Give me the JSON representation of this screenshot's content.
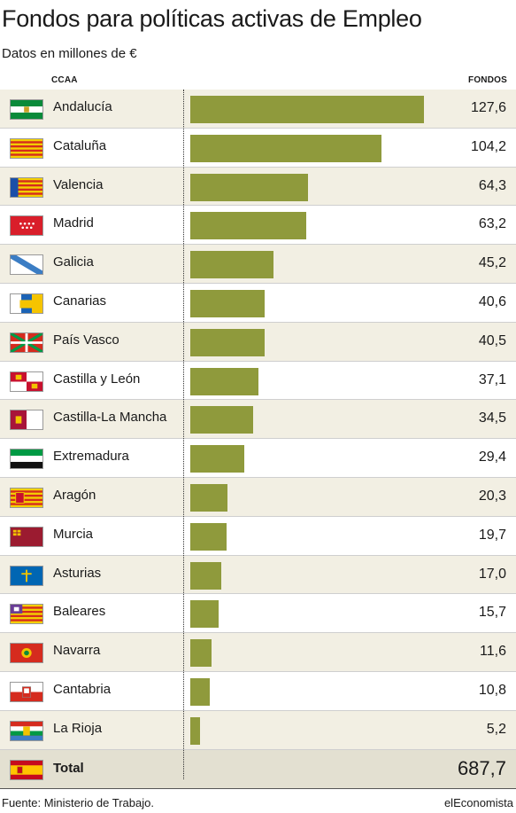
{
  "header": {
    "title": "Fondos para políticas activas de Empleo",
    "subtitle": "Datos en millones de €",
    "col_region": "CCAA",
    "col_funds": "FONDOS"
  },
  "chart_data": {
    "type": "bar",
    "orientation": "horizontal",
    "title": "Fondos para políticas activas de Empleo",
    "subtitle": "Datos en millones de €",
    "xlabel": "FONDOS",
    "ylabel": "CCAA",
    "xlim": [
      0,
      127.6
    ],
    "categories": [
      "Andalucía",
      "Cataluña",
      "Valencia",
      "Madrid",
      "Galicia",
      "Canarias",
      "País Vasco",
      "Castilla y León",
      "Castilla-La Mancha",
      "Extremadura",
      "Aragón",
      "Murcia",
      "Asturias",
      "Baleares",
      "Navarra",
      "Cantabria",
      "La Rioja"
    ],
    "values": [
      127.6,
      104.2,
      64.3,
      63.2,
      45.2,
      40.6,
      40.5,
      37.1,
      34.5,
      29.4,
      20.3,
      19.7,
      17.0,
      15.7,
      11.6,
      10.8,
      5.2
    ],
    "value_labels": [
      "127,6",
      "104,2",
      "64,3",
      "63,2",
      "45,2",
      "40,6",
      "40,5",
      "37,1",
      "34,5",
      "29,4",
      "20,3",
      "19,7",
      "17,0",
      "15,7",
      "11,6",
      "10,8",
      "5,2"
    ],
    "flag_icons": [
      "andalucia-flag-icon",
      "cataluna-flag-icon",
      "valencia-flag-icon",
      "madrid-flag-icon",
      "galicia-flag-icon",
      "canarias-flag-icon",
      "pais-vasco-flag-icon",
      "castilla-y-leon-flag-icon",
      "castilla-la-mancha-flag-icon",
      "extremadura-flag-icon",
      "aragon-flag-icon",
      "murcia-flag-icon",
      "asturias-flag-icon",
      "baleares-flag-icon",
      "navarra-flag-icon",
      "cantabria-flag-icon",
      "la-rioja-flag-icon"
    ],
    "total": {
      "label": "Total",
      "value": 687.7,
      "value_label": "687,7",
      "flag_icon": "espana-flag-icon"
    },
    "bar_color": "#8f9a3c",
    "grid": false,
    "legend": "none"
  },
  "footer": {
    "source": "Fuente: Ministerio de Trabajo.",
    "brand": "elEconomista"
  }
}
